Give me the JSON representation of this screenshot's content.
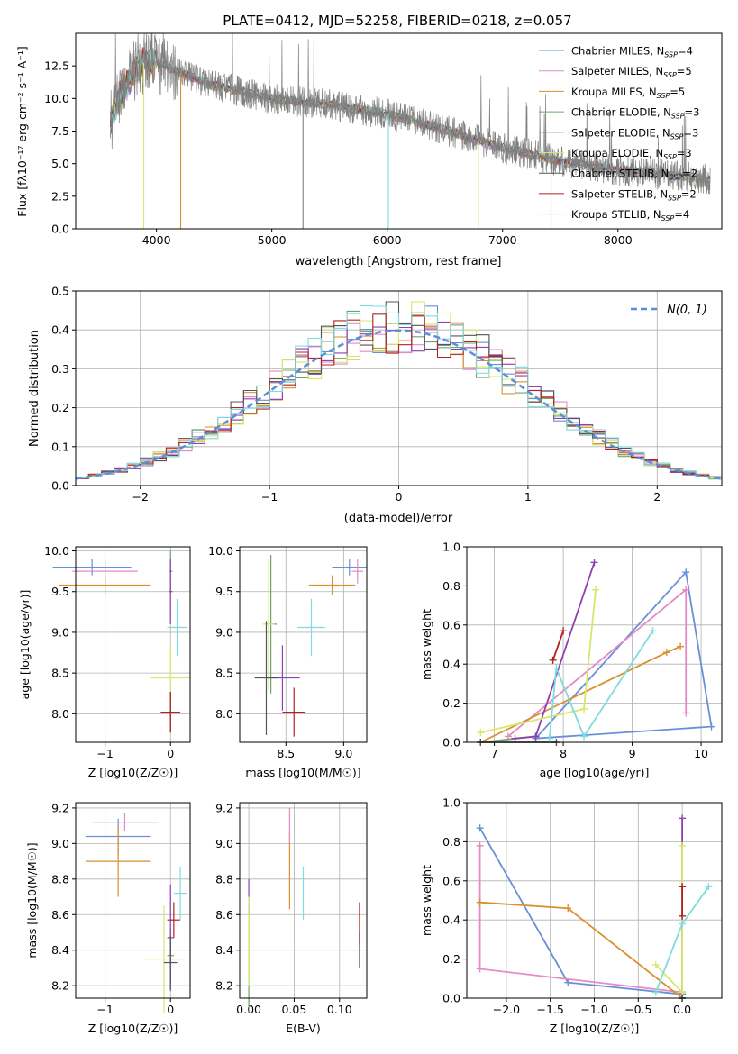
{
  "chart_data": [
    {
      "id": "spectrum",
      "type": "line",
      "title": "PLATE=0412, MJD=52258, FIBERID=0218, z=0.057",
      "xlabel": "wavelength [Angstrom, rest frame]",
      "ylabel": "Flux [fλ10⁻¹⁷ erg cm⁻² s⁻¹ A⁻¹]",
      "xlim": [
        3300,
        8900
      ],
      "ylim": [
        0,
        15
      ],
      "xticks": [
        4000,
        5000,
        6000,
        7000,
        8000
      ],
      "yticks": [
        0.0,
        2.5,
        5.0,
        7.5,
        10.0,
        12.5
      ],
      "legend_position": "top-right",
      "grid": false,
      "series": [
        {
          "name": "Chabrier MILES, N_SSP=4",
          "color": "#6a8fd8"
        },
        {
          "name": "Salpeter MILES, N_SSP=5",
          "color": "#e38bc4"
        },
        {
          "name": "Kroupa MILES, N_SSP=5",
          "color": "#d99030"
        },
        {
          "name": "Chabrier ELODIE, N_SSP=3",
          "color": "#6aa86a"
        },
        {
          "name": "Salpeter ELODIE, N_SSP=3",
          "color": "#8e3fb0"
        },
        {
          "name": "Kroupa ELODIE, N_SSP=3",
          "color": "#d6e86a"
        },
        {
          "name": "Chabrier STELIB, N_SSP=2",
          "color": "#555555"
        },
        {
          "name": "Salpeter STELIB, N_SSP=2",
          "color": "#b22222"
        },
        {
          "name": "Kroupa STELIB, N_SSP=4",
          "color": "#7fdbe0"
        }
      ],
      "continuum": {
        "x": [
          3600,
          3700,
          3800,
          3900,
          4000,
          4200,
          4500,
          5000,
          5500,
          6000,
          6500,
          7000,
          7500,
          8000,
          8500,
          8800
        ],
        "y": [
          8.2,
          10.5,
          12.0,
          12.8,
          12.8,
          12.0,
          11.0,
          10.0,
          9.5,
          8.8,
          7.6,
          6.2,
          5.2,
          4.5,
          4.1,
          3.8
        ]
      }
    },
    {
      "id": "residuals",
      "type": "line",
      "xlabel": "(data-model)/error",
      "ylabel": "Normed distribution",
      "xlim": [
        -2.5,
        2.5
      ],
      "ylim": [
        0,
        0.5
      ],
      "xticks": [
        -2,
        -1,
        0,
        1,
        2
      ],
      "yticks": [
        0.0,
        0.1,
        0.2,
        0.3,
        0.4,
        0.5
      ],
      "grid": true,
      "legend": "N(0, 1)",
      "legend_position": "top-right",
      "gaussian": {
        "mu": 0,
        "sigma": 1,
        "color": "#5b8fd6"
      }
    },
    {
      "id": "age-vs-Z",
      "type": "scatter",
      "xlabel": "Z [log10(Z/Z☉)]",
      "ylabel": "age  [log10(age/yr)]",
      "xlim": [
        -1.45,
        0.3
      ],
      "ylim": [
        7.65,
        10.05
      ],
      "xticks": [
        -1,
        0
      ],
      "yticks": [
        8.0,
        8.5,
        9.0,
        9.5,
        10.0
      ],
      "grid": true,
      "points": [
        {
          "x": -1.2,
          "y": 9.8,
          "xerr": 0.6,
          "yerr": 0.1,
          "color": "#6a8fd8"
        },
        {
          "x": -1.0,
          "y": 9.75,
          "xerr": 0.5,
          "yerr": 0.15,
          "color": "#e38bc4"
        },
        {
          "x": -1.0,
          "y": 9.58,
          "xerr": 0.7,
          "yerr": 0.12,
          "color": "#d99030"
        },
        {
          "x": 0.0,
          "y": 9.75,
          "xerr": 0.03,
          "yerr": 0.25,
          "color": "#6aa86a"
        },
        {
          "x": 0.0,
          "y": 9.5,
          "xerr": 0.03,
          "yerr": 0.4,
          "color": "#8e3fb0"
        },
        {
          "x": 0.0,
          "y": 8.44,
          "xerr": 0.3,
          "yerr": 0.4,
          "color": "#d6e86a"
        },
        {
          "x": 0.0,
          "y": 8.02,
          "xerr": 0.05,
          "yerr": 0.25,
          "color": "#555555"
        },
        {
          "x": 0.0,
          "y": 8.02,
          "xerr": 0.15,
          "yerr": 0.25,
          "color": "#b22222"
        },
        {
          "x": 0.1,
          "y": 9.06,
          "xerr": 0.15,
          "yerr": 0.35,
          "color": "#7fdbe0"
        }
      ]
    },
    {
      "id": "age-vs-mass",
      "type": "scatter",
      "xlabel": "mass [log10(M/M☉)]",
      "ylabel": "",
      "xlim": [
        8.1,
        9.2
      ],
      "ylim": [
        7.65,
        10.05
      ],
      "xticks": [
        8.5,
        9.0
      ],
      "yticks": [
        8.0,
        8.5,
        9.0,
        9.5,
        10.0
      ],
      "grid": true,
      "points": [
        {
          "x": 9.05,
          "y": 9.8,
          "xerr": 0.15,
          "yerr": 0.1,
          "color": "#6a8fd8"
        },
        {
          "x": 9.12,
          "y": 9.75,
          "xerr": 0.05,
          "yerr": 0.15,
          "color": "#e38bc4"
        },
        {
          "x": 8.9,
          "y": 9.58,
          "xerr": 0.2,
          "yerr": 0.12,
          "color": "#d99030"
        },
        {
          "x": 8.37,
          "y": 9.1,
          "xerr": 0.05,
          "yerr": 0.85,
          "color": "#6aa86a"
        },
        {
          "x": 8.47,
          "y": 8.44,
          "xerr": 0.15,
          "yerr": 0.4,
          "color": "#8e3fb0"
        },
        {
          "x": 8.35,
          "y": 9.1,
          "xerr": 0.05,
          "yerr": 0.8,
          "color": "#d6e86a"
        },
        {
          "x": 8.33,
          "y": 8.44,
          "xerr": 0.1,
          "yerr": 0.7,
          "color": "#555555"
        },
        {
          "x": 8.57,
          "y": 8.02,
          "xerr": 0.1,
          "yerr": 0.3,
          "color": "#b22222"
        },
        {
          "x": 8.72,
          "y": 9.06,
          "xerr": 0.12,
          "yerr": 0.35,
          "color": "#7fdbe0"
        }
      ]
    },
    {
      "id": "weight-vs-age",
      "type": "line",
      "xlabel": "age  [log10(age/yr)]",
      "ylabel": "mass weight",
      "xlim": [
        6.6,
        10.3
      ],
      "ylim": [
        0,
        1.0
      ],
      "xticks": [
        7,
        8,
        9,
        10
      ],
      "yticks": [
        0.0,
        0.2,
        0.4,
        0.6,
        0.8,
        1.0
      ],
      "grid": true,
      "series": [
        {
          "color": "#6a8fd8",
          "x": [
            7.6,
            9.78,
            10.15,
            7.6
          ],
          "y": [
            0.02,
            0.87,
            0.08,
            0.02
          ]
        },
        {
          "color": "#e38bc4",
          "x": [
            7.2,
            9.78,
            9.78
          ],
          "y": [
            0.03,
            0.78,
            0.15
          ]
        },
        {
          "color": "#d99030",
          "x": [
            6.8,
            9.5,
            9.7
          ],
          "y": [
            0.0,
            0.46,
            0.49
          ]
        },
        {
          "color": "#6aa86a",
          "x": [
            6.8,
            7.6
          ],
          "y": [
            0.0,
            0.03
          ]
        },
        {
          "color": "#8e3fb0",
          "x": [
            7.3,
            7.6,
            8.45
          ],
          "y": [
            0.02,
            0.03,
            0.92
          ]
        },
        {
          "color": "#d6e86a",
          "x": [
            6.8,
            8.3,
            8.47
          ],
          "y": [
            0.05,
            0.17,
            0.78
          ]
        },
        {
          "color": "#555555",
          "x": [
            6.8,
            7.9
          ],
          "y": [
            0.0,
            0.0
          ]
        },
        {
          "color": "#b22222",
          "x": [
            7.85,
            8.0
          ],
          "y": [
            0.42,
            0.57
          ]
        },
        {
          "color": "#7fdbe0",
          "x": [
            7.8,
            7.9,
            8.3,
            9.3
          ],
          "y": [
            0.02,
            0.38,
            0.03,
            0.57
          ]
        }
      ]
    },
    {
      "id": "mass-vs-Z",
      "type": "scatter",
      "xlabel": "Z [log10(Z/Z☉)]",
      "ylabel": "mass [log10(M/M☉)]",
      "xlim": [
        -1.45,
        0.3
      ],
      "ylim": [
        8.13,
        9.23
      ],
      "xticks": [
        -1,
        0
      ],
      "yticks": [
        8.2,
        8.4,
        8.6,
        8.8,
        9.0,
        9.2
      ],
      "grid": true,
      "points": [
        {
          "x": -0.8,
          "y": 9.04,
          "xerr": 0.5,
          "yerr": 0.1,
          "color": "#6a8fd8"
        },
        {
          "x": -0.7,
          "y": 9.12,
          "xerr": 0.5,
          "yerr": 0.05,
          "color": "#e38bc4"
        },
        {
          "x": -0.8,
          "y": 8.9,
          "xerr": 0.5,
          "yerr": 0.2,
          "color": "#d99030"
        },
        {
          "x": 0.0,
          "y": 8.37,
          "xerr": 0.05,
          "yerr": 0.15,
          "color": "#6aa86a"
        },
        {
          "x": 0.0,
          "y": 8.47,
          "xerr": 0.05,
          "yerr": 0.3,
          "color": "#8e3fb0"
        },
        {
          "x": -0.1,
          "y": 8.35,
          "xerr": 0.3,
          "yerr": 0.3,
          "color": "#d6e86a"
        },
        {
          "x": 0.0,
          "y": 8.33,
          "xerr": 0.1,
          "yerr": 0.15,
          "color": "#555555"
        },
        {
          "x": 0.05,
          "y": 8.57,
          "xerr": 0.1,
          "yerr": 0.1,
          "color": "#b22222"
        },
        {
          "x": 0.15,
          "y": 8.72,
          "xerr": 0.1,
          "yerr": 0.15,
          "color": "#7fdbe0"
        }
      ]
    },
    {
      "id": "mass-vs-ebv",
      "type": "scatter",
      "xlabel": "E(B-V)",
      "ylabel": "",
      "xlim": [
        -0.01,
        0.13
      ],
      "ylim": [
        8.13,
        9.23
      ],
      "xticks": [
        0.0,
        0.05,
        0.1
      ],
      "yticks": [
        8.2,
        8.4,
        8.6,
        8.8,
        9.0,
        9.2
      ],
      "grid": true,
      "points": [
        {
          "x": 0.0,
          "y": 8.35,
          "yerr": 0.3,
          "color": "#6aa86a"
        },
        {
          "x": 0.0,
          "y": 8.7,
          "yerr": 0.1,
          "color": "#8e3fb0"
        },
        {
          "x": 0.0,
          "y": 8.45,
          "yerr": 0.25,
          "color": "#d6e86a"
        },
        {
          "x": 0.045,
          "y": 8.85,
          "yerr": 0.22,
          "color": "#d99030"
        },
        {
          "x": 0.045,
          "y": 9.1,
          "yerr": 0.1,
          "color": "#e38bc4"
        },
        {
          "x": 0.06,
          "y": 8.72,
          "yerr": 0.15,
          "color": "#7fdbe0"
        },
        {
          "x": 0.122,
          "y": 8.55,
          "yerr": 0.12,
          "color": "#b22222"
        },
        {
          "x": 0.122,
          "y": 8.4,
          "yerr": 0.1,
          "color": "#555555"
        }
      ]
    },
    {
      "id": "weight-vs-Z",
      "type": "line",
      "xlabel": "Z [log10(Z/Z☉)]",
      "ylabel": "mass weight",
      "xlim": [
        -2.45,
        0.45
      ],
      "ylim": [
        0,
        1.0
      ],
      "xticks": [
        -2.0,
        -1.5,
        -1.0,
        -0.5,
        0.0
      ],
      "yticks": [
        0.0,
        0.2,
        0.4,
        0.6,
        0.8,
        1.0
      ],
      "grid": true,
      "series": [
        {
          "color": "#6a8fd8",
          "x": [
            -2.3,
            -1.3,
            0.0
          ],
          "y": [
            0.87,
            0.08,
            0.02
          ]
        },
        {
          "color": "#e38bc4",
          "x": [
            -2.3,
            -2.3,
            0.0
          ],
          "y": [
            0.78,
            0.15,
            0.03
          ]
        },
        {
          "color": "#d99030",
          "x": [
            -2.3,
            -1.3,
            0.0
          ],
          "y": [
            0.49,
            0.46,
            0.0
          ]
        },
        {
          "color": "#6aa86a",
          "x": [
            0.0,
            0.0
          ],
          "y": [
            0.0,
            0.03
          ]
        },
        {
          "color": "#8e3fb0",
          "x": [
            0.0,
            0.0
          ],
          "y": [
            0.92,
            0.03
          ]
        },
        {
          "color": "#d6e86a",
          "x": [
            -0.3,
            0.0,
            0.0
          ],
          "y": [
            0.17,
            0.03,
            0.78
          ]
        },
        {
          "color": "#555555",
          "x": [
            0.0,
            0.0
          ],
          "y": [
            0.0,
            0.0
          ]
        },
        {
          "color": "#b22222",
          "x": [
            0.0,
            0.0
          ],
          "y": [
            0.57,
            0.42
          ]
        },
        {
          "color": "#7fdbe0",
          "x": [
            -0.3,
            0.0,
            0.3
          ],
          "y": [
            0.03,
            0.38,
            0.57
          ]
        }
      ]
    }
  ]
}
